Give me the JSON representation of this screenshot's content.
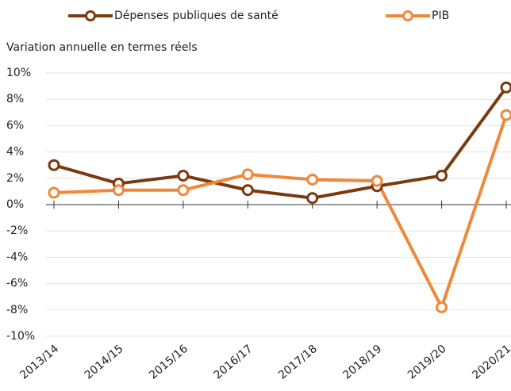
{
  "chart_data": {
    "type": "line",
    "ylabel": "Variation annuelle en termes réels",
    "categories": [
      "2013/14",
      "2014/15",
      "2015/16",
      "2016/17",
      "2017/18",
      "2018/19",
      "2019/20",
      "2020/21"
    ],
    "series": [
      {
        "name": "Dépenses publiques de santé",
        "color": "#7b3a0e",
        "values": [
          3.0,
          1.6,
          2.2,
          1.1,
          0.5,
          1.4,
          2.2,
          8.9
        ]
      },
      {
        "name": "PIB",
        "color": "#f0883a",
        "values": [
          0.9,
          1.1,
          1.1,
          2.3,
          1.9,
          1.8,
          -7.8,
          6.8
        ]
      }
    ],
    "ylim": [
      -10,
      10
    ],
    "yticks": [
      {
        "value": -10,
        "label": "-10%"
      },
      {
        "value": -8,
        "label": "-8%"
      },
      {
        "value": -6,
        "label": "-6%"
      },
      {
        "value": -4,
        "label": "-4%"
      },
      {
        "value": -2,
        "label": "-2%"
      },
      {
        "value": 0,
        "label": "0%"
      },
      {
        "value": 2,
        "label": "2%"
      },
      {
        "value": 4,
        "label": "4%"
      },
      {
        "value": 6,
        "label": "6%"
      },
      {
        "value": 8,
        "label": "8%"
      },
      {
        "value": 10,
        "label": "10%"
      }
    ],
    "grid": true
  }
}
